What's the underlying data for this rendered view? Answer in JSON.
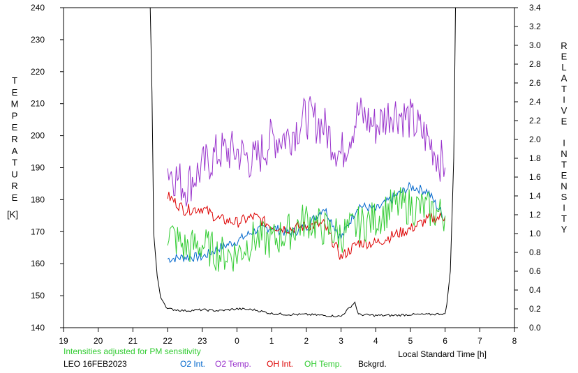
{
  "chart_data": {
    "type": "line",
    "left_axis_label": "TEMPERATURE",
    "left_axis_unit": "[K]",
    "right_axis_label": "RELATIVE INTENSITY",
    "xlabel": "Local Standard Time [h]",
    "note": "Intensities adjusted for PM sensitivity",
    "station_date": "LEO 16FEB2023",
    "xlim": [
      19,
      32
    ],
    "x_ticks": [
      19,
      20,
      21,
      22,
      23,
      24,
      25,
      26,
      27,
      28,
      29,
      30,
      31,
      32
    ],
    "x_tick_labels": [
      "19",
      "20",
      "21",
      "22",
      "23",
      "0",
      "1",
      "2",
      "3",
      "4",
      "5",
      "6",
      "7",
      "8"
    ],
    "ylim_left": [
      140,
      240
    ],
    "y_left_ticks": [
      "140",
      "150",
      "160",
      "170",
      "180",
      "190",
      "200",
      "210",
      "220",
      "230",
      "240"
    ],
    "ylim_right": [
      0.0,
      3.4
    ],
    "y_right_ticks": [
      "0.0",
      "0.2",
      "0.4",
      "0.6",
      "0.8",
      "1.0",
      "1.2",
      "1.4",
      "1.6",
      "1.8",
      "2.0",
      "2.2",
      "2.4",
      "2.6",
      "2.8",
      "3.0",
      "3.2",
      "3.4"
    ],
    "grid": false,
    "series": [
      {
        "name": "O2 Int.",
        "axis": "right",
        "color": "#0066cc",
        "x": [
          22.0,
          22.5,
          23.0,
          23.5,
          24.0,
          24.5,
          25.0,
          25.5,
          26.0,
          26.5,
          27.0,
          27.5,
          28.0,
          28.5,
          29.0,
          29.5,
          30.0
        ],
        "y": [
          0.73,
          0.75,
          0.75,
          0.85,
          0.92,
          1.03,
          1.07,
          1.0,
          1.07,
          1.28,
          0.95,
          1.3,
          1.25,
          1.38,
          1.5,
          1.45,
          1.15
        ]
      },
      {
        "name": "O2 Temp.",
        "axis": "left",
        "color": "#9933cc",
        "x": [
          22.0,
          22.5,
          23.0,
          23.5,
          24.0,
          24.5,
          25.0,
          25.5,
          26.0,
          26.5,
          27.0,
          27.5,
          28.0,
          28.5,
          29.0,
          29.5,
          30.0
        ],
        "y": [
          190.0,
          184.0,
          190.0,
          195.0,
          195.0,
          192.0,
          199.0,
          200.0,
          206.0,
          203.0,
          194.0,
          207.0,
          203.0,
          208.0,
          205.0,
          199.0,
          190.0
        ]
      },
      {
        "name": "OH Int.",
        "axis": "right",
        "color": "#dd0000",
        "x": [
          22.0,
          22.5,
          23.0,
          23.5,
          24.0,
          24.5,
          25.0,
          25.5,
          26.0,
          26.5,
          27.0,
          27.5,
          28.0,
          28.5,
          29.0,
          29.5,
          30.0
        ],
        "y": [
          1.4,
          1.25,
          1.27,
          1.15,
          1.12,
          1.18,
          1.08,
          1.05,
          1.08,
          1.1,
          0.75,
          0.9,
          0.9,
          0.98,
          1.05,
          1.15,
          1.18
        ]
      },
      {
        "name": "OH Temp.",
        "axis": "left",
        "color": "#33cc33",
        "x": [
          22.0,
          22.5,
          23.0,
          23.5,
          24.0,
          24.5,
          25.0,
          25.5,
          26.0,
          26.5,
          27.0,
          27.5,
          28.0,
          28.5,
          29.0,
          29.5,
          30.0
        ],
        "y": [
          170.0,
          165.0,
          166.0,
          163.0,
          163.0,
          168.0,
          167.0,
          170.0,
          174.0,
          171.0,
          169.0,
          172.0,
          174.0,
          178.0,
          178.0,
          177.0,
          175.0
        ]
      },
      {
        "name": "Bckgrd.",
        "axis": "right",
        "color": "#000000",
        "x": [
          21.5,
          21.55,
          21.6,
          21.7,
          21.8,
          22.0,
          22.5,
          23.0,
          23.5,
          24.0,
          24.5,
          25.0,
          25.5,
          26.0,
          26.5,
          27.0,
          27.4,
          27.5,
          28.0,
          28.5,
          29.0,
          29.5,
          30.0,
          30.05,
          30.15,
          30.25,
          30.3
        ],
        "y": [
          3.4,
          2.5,
          1.0,
          0.55,
          0.32,
          0.2,
          0.18,
          0.19,
          0.18,
          0.2,
          0.19,
          0.15,
          0.14,
          0.14,
          0.13,
          0.12,
          0.27,
          0.14,
          0.13,
          0.13,
          0.14,
          0.14,
          0.15,
          0.25,
          0.6,
          1.8,
          3.4
        ]
      }
    ]
  }
}
